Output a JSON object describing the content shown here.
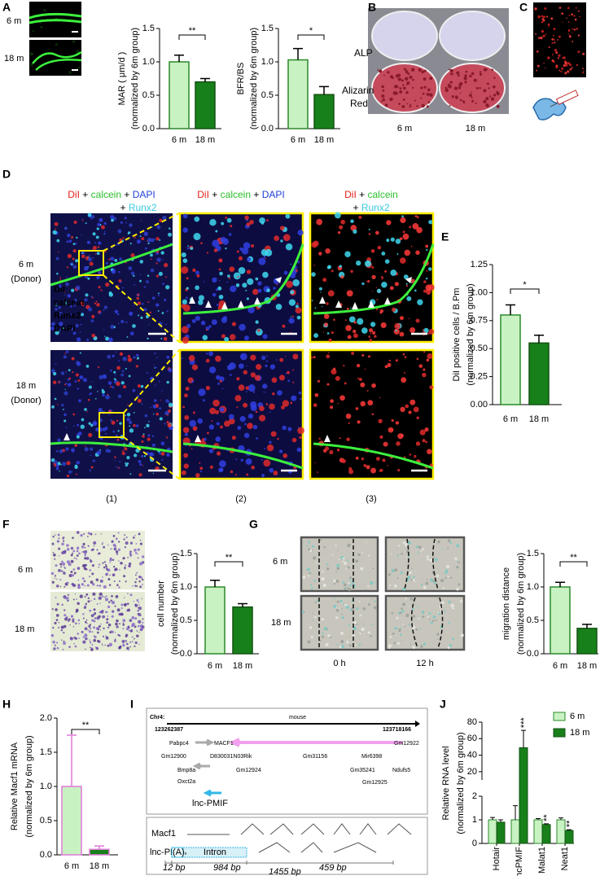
{
  "panel_letters": [
    "A",
    "B",
    "C",
    "D",
    "E",
    "F",
    "G",
    "H",
    "I",
    "J"
  ],
  "A": {
    "rows": [
      "6 m",
      "18 m"
    ]
  },
  "B": {
    "rows": [
      [
        "ALP"
      ],
      [
        "Alizarin",
        "Red"
      ]
    ],
    "columns": [
      "6 m",
      "18 m"
    ]
  },
  "D": {
    "headers": [
      [
        [
          "DiI",
          "+",
          "calcein",
          "+",
          "DAPI"
        ],
        [
          "+",
          "Runx2"
        ]
      ],
      [
        [
          "DiI",
          "+",
          "calcein",
          "+",
          "DAPI"
        ]
      ],
      [
        [
          "DiI",
          "+",
          "calcein"
        ],
        [
          "+",
          "Runx2"
        ]
      ]
    ],
    "rows": [
      [
        "6 m",
        "(Donor)"
      ],
      [
        "18 m",
        "(Donor)"
      ]
    ],
    "columns": [
      "(1)",
      "(2)",
      "(3)"
    ],
    "channel_labels": [
      "DiI",
      "calcein",
      "Runx2",
      "DAPI"
    ]
  },
  "F": {
    "rows": [
      "6 m",
      "18 m"
    ]
  },
  "G": {
    "rows": [
      "6 m",
      "18 m"
    ],
    "columns": [
      "0 h",
      "12 h"
    ]
  },
  "I": {
    "chromosome": "Chr4:",
    "species": "mouse",
    "start": "123262387",
    "end": "123718166",
    "genes": [
      "Pabpc4",
      "MACF1",
      "Gm12922",
      "Gm12900",
      "D830031N03Rik",
      "Gm31156",
      "Mir6398",
      "Bmp8a",
      "Gm12924",
      "Gm35241",
      "Ndufs5",
      "Oxct2a",
      "Gm12925",
      "lnc-PMIF"
    ],
    "macf1_label": "Macf1",
    "macf1_exons": [
      "89",
      "88",
      "87",
      "86",
      "85",
      "84",
      "83"
    ],
    "lnc_label": "lnc-PMIF",
    "polyA": [
      "(A)",
      "n"
    ],
    "intron": "Intron",
    "lnc_exons": [
      "88",
      "87",
      "86",
      "84"
    ],
    "sizes": [
      "12 bp",
      "984 bp",
      "459 bp",
      "1455 bp"
    ]
  },
  "chart_data": [
    {
      "type": "bar",
      "categories": [
        "6 m",
        "18 m"
      ],
      "values": [
        1.0,
        0.7
      ],
      "error": [
        0.1,
        0.05
      ],
      "colors": [
        "#c9f2c3",
        "#17801a"
      ],
      "edge_colors": [
        "#2a8a2a",
        "#145214"
      ],
      "ylim": [
        0,
        1.5
      ],
      "yticks": [
        {
          "value": 0,
          "label": "0.0"
        },
        0.5,
        {
          "value": 1,
          "label": "1.0"
        },
        1.5
      ],
      "ylabel": [
        "MAR ( μm/d )",
        "(normalized by 6m group)"
      ],
      "significance": "**"
    },
    {
      "type": "bar",
      "categories": [
        "6 m",
        "18 m"
      ],
      "values": [
        1.03,
        0.51
      ],
      "error": [
        0.17,
        0.12
      ],
      "colors": [
        "#c9f2c3",
        "#17801a"
      ],
      "edge_colors": [
        "#2a8a2a",
        "#145214"
      ],
      "ylim": [
        0,
        1.5
      ],
      "yticks": [
        {
          "value": 0,
          "label": "0.0"
        },
        0.5,
        {
          "value": 1,
          "label": "1.0"
        },
        1.5
      ],
      "ylabel": [
        "BFR/BS",
        "(normalized by 6m group)"
      ],
      "significance": "*"
    },
    {
      "type": "bar",
      "categories": [
        "6 m",
        "18 m"
      ],
      "values": [
        0.8,
        0.55
      ],
      "error": [
        0.09,
        0.07
      ],
      "colors": [
        "#c9f2c3",
        "#17801a"
      ],
      "edge_colors": [
        "#2a8a2a",
        "#145214"
      ],
      "ylim": [
        0,
        1.25
      ],
      "yticks": [
        {
          "value": 0,
          "label": "0.00"
        },
        0.25,
        {
          "value": 0.5,
          "label": "0.50"
        },
        0.75,
        {
          "value": 1,
          "label": "1.00"
        },
        1.25
      ],
      "ylabel": [
        "DiI positive cells / B.Pm",
        "(normalized by 6m group)"
      ],
      "significance": "*"
    },
    {
      "type": "bar",
      "categories": [
        "6 m",
        "18 m"
      ],
      "values": [
        1.0,
        0.7
      ],
      "error": [
        0.1,
        0.05
      ],
      "colors": [
        "#c9f2c3",
        "#17801a"
      ],
      "edge_colors": [
        "#2a8a2a",
        "#145214"
      ],
      "ylim": [
        0,
        1.5
      ],
      "yticks": [
        {
          "value": 0,
          "label": "0.0"
        },
        0.5,
        {
          "value": 1,
          "label": "1.0"
        },
        1.5
      ],
      "ylabel": [
        "cell number",
        "(normalized by 6m group)"
      ],
      "significance": "**"
    },
    {
      "type": "bar",
      "categories": [
        "6 m",
        "18 m"
      ],
      "values": [
        1.0,
        0.38
      ],
      "error": [
        0.07,
        0.06
      ],
      "colors": [
        "#c9f2c3",
        "#17801a"
      ],
      "edge_colors": [
        "#2a8a2a",
        "#145214"
      ],
      "ylim": [
        0,
        1.5
      ],
      "yticks": [
        {
          "value": 0,
          "label": "0.0"
        },
        0.5,
        {
          "value": 1,
          "label": "1.0"
        },
        1.5
      ],
      "ylabel": [
        "migration distance",
        "(normalized by 6m group)"
      ],
      "significance": "**"
    },
    {
      "type": "bar",
      "categories": [
        "6 m",
        "18 m"
      ],
      "values": [
        1.0,
        0.08
      ],
      "error": [
        0.75,
        0.05
      ],
      "colors": [
        "#c9f2c3",
        "#17801a"
      ],
      "edge_colors": [
        "#e07ad8",
        "#e07ad8"
      ],
      "error_colors": [
        "#e07ad8",
        "#e07ad8"
      ],
      "ylim": [
        0,
        2
      ],
      "yticks": [
        {
          "value": 0,
          "label": "0.0"
        },
        0.5,
        {
          "value": 1,
          "label": "1.0"
        },
        1.5,
        {
          "value": 2,
          "label": "2.0"
        }
      ],
      "ylabel": [
        "Relative Macf1 mRNA",
        "(normalized by 6m group)"
      ],
      "significance": "**"
    },
    {
      "type": "grouped_bar",
      "categories": [
        "Hotair",
        "lncPMIF",
        "Malat1",
        "Neat1"
      ],
      "series": [
        {
          "name": "6 m",
          "color": "#c9f2c3",
          "edge_color": "#2a8a2a",
          "values": [
            1,
            1,
            1,
            1
          ],
          "error": [
            0.1,
            0.6,
            0.05,
            0.08
          ]
        },
        {
          "name": "18 m",
          "color": "#17801a",
          "edge_color": "#145214",
          "values": [
            0.9,
            49,
            0.8,
            0.55
          ],
          "error": [
            0.1,
            21,
            0.03,
            0.03
          ],
          "significance": [
            null,
            "***",
            "**",
            "**"
          ]
        }
      ],
      "ylim": [
        0,
        80
      ],
      "break": [
        2,
        10
      ],
      "yticks": [
        0,
        1,
        2,
        20,
        40,
        60,
        80
      ],
      "ylabel": [
        "Relative RNA level",
        "(normalized by 6m group)"
      ],
      "legend": "top-right"
    }
  ]
}
